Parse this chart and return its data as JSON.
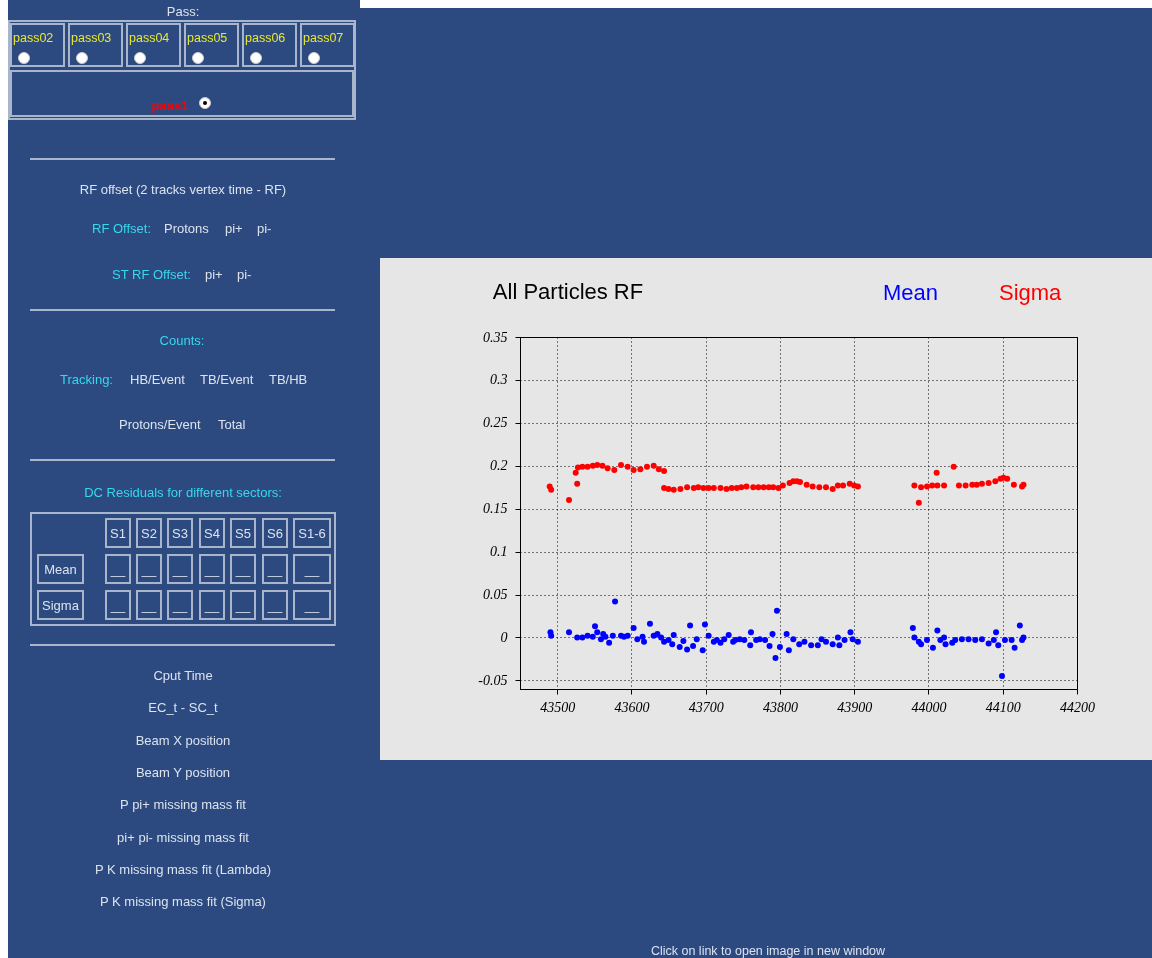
{
  "chart_data": {
    "type": "scatter",
    "title": "All Particles RF",
    "marker": "circle",
    "grid": true,
    "xlim": [
      43450,
      44200
    ],
    "xticks": [
      43500,
      43600,
      43700,
      43800,
      43900,
      44000,
      44100,
      44200
    ],
    "ylim": [
      -0.06,
      0.35
    ],
    "yticks": [
      -0.05,
      0,
      0.05,
      0.1,
      0.15,
      0.2,
      0.25,
      0.3,
      0.35
    ],
    "series": [
      {
        "name": "Mean",
        "color": "#0000ff",
        "x": [
          43491,
          43492,
          43516,
          43527,
          43534,
          43541,
          43548,
          43551,
          43554,
          43559,
          43562,
          43565,
          43570,
          43575,
          43578,
          43586,
          43590,
          43595,
          43603,
          43608,
          43615,
          43617,
          43625,
          43630,
          43635,
          43640,
          43644,
          43650,
          43655,
          43657,
          43665,
          43670,
          43675,
          43679,
          43683,
          43688,
          43696,
          43699,
          43704,
          43711,
          43715,
          43720,
          43725,
          43731,
          43737,
          43740,
          43746,
          43752,
          43760,
          43761,
          43768,
          43773,
          43780,
          43786,
          43790,
          43794,
          43796,
          43800,
          43809,
          43812,
          43818,
          43826,
          43833,
          43842,
          43851,
          43856,
          43862,
          43871,
          43878,
          43880,
          43887,
          43895,
          43898,
          43905,
          43979,
          43981,
          43987,
          43990,
          43998,
          44006,
          44012,
          44016,
          44021,
          44023,
          44032,
          44036,
          44045,
          44054,
          44063,
          44072,
          44081,
          44088,
          44091,
          44094,
          44099,
          44103,
          44112,
          44116,
          44123,
          44126,
          44128
        ],
        "values": [
          0.006,
          0.002,
          0.006,
          0.0,
          0.0,
          0.002,
          0.001,
          0.013,
          0.006,
          -0.002,
          0.004,
          0.001,
          -0.006,
          0.002,
          0.042,
          0.002,
          0.001,
          0.002,
          0.011,
          -0.002,
          0.001,
          -0.005,
          0.016,
          0.002,
          0.004,
          0.0,
          -0.005,
          -0.003,
          -0.008,
          0.003,
          -0.011,
          -0.004,
          -0.014,
          0.014,
          -0.01,
          -0.002,
          -0.015,
          0.015,
          0.002,
          -0.005,
          -0.003,
          -0.006,
          -0.002,
          0.003,
          -0.005,
          -0.003,
          -0.002,
          -0.003,
          -0.009,
          0.006,
          -0.003,
          -0.002,
          -0.003,
          -0.01,
          0.004,
          -0.024,
          0.031,
          -0.011,
          0.004,
          -0.015,
          -0.002,
          -0.008,
          -0.005,
          -0.009,
          -0.009,
          -0.002,
          -0.005,
          -0.008,
          0.0,
          -0.009,
          -0.003,
          0.006,
          -0.002,
          -0.005,
          0.011,
          0.0,
          -0.005,
          -0.008,
          -0.003,
          -0.012,
          0.008,
          -0.003,
          0.0,
          -0.008,
          -0.006,
          -0.003,
          -0.002,
          -0.002,
          -0.003,
          -0.002,
          -0.007,
          -0.003,
          0.006,
          -0.009,
          -0.045,
          -0.003,
          -0.003,
          -0.012,
          0.014,
          -0.003,
          0.0
        ]
      },
      {
        "name": "Sigma",
        "color": "#ff0000",
        "x": [
          43490,
          43492,
          43516,
          43525,
          43527,
          43528,
          43534,
          43541,
          43548,
          43554,
          43561,
          43568,
          43577,
          43586,
          43595,
          43603,
          43612,
          43621,
          43630,
          43637,
          43644,
          43644,
          43650,
          43657,
          43666,
          43675,
          43684,
          43690,
          43697,
          43704,
          43711,
          43720,
          43728,
          43735,
          43742,
          43748,
          43755,
          43764,
          43771,
          43778,
          43785,
          43791,
          43798,
          43804,
          43813,
          43818,
          43823,
          43827,
          43836,
          43844,
          43853,
          43862,
          43871,
          43878,
          43885,
          43894,
          43900,
          43905,
          43981,
          43987,
          43990,
          43998,
          44005,
          44011,
          44012,
          44021,
          44034,
          44041,
          44050,
          44059,
          44065,
          44072,
          44081,
          44090,
          44097,
          44101,
          44106,
          44115,
          44126,
          44128
        ],
        "values": [
          0.176,
          0.172,
          0.16,
          0.192,
          0.179,
          0.198,
          0.199,
          0.199,
          0.2,
          0.201,
          0.2,
          0.197,
          0.195,
          0.201,
          0.199,
          0.195,
          0.196,
          0.199,
          0.2,
          0.196,
          0.194,
          0.174,
          0.173,
          0.172,
          0.173,
          0.175,
          0.174,
          0.175,
          0.174,
          0.174,
          0.174,
          0.174,
          0.173,
          0.174,
          0.174,
          0.175,
          0.176,
          0.175,
          0.175,
          0.175,
          0.175,
          0.175,
          0.174,
          0.177,
          0.18,
          0.182,
          0.182,
          0.181,
          0.178,
          0.176,
          0.175,
          0.175,
          0.173,
          0.177,
          0.177,
          0.179,
          0.177,
          0.176,
          0.177,
          0.157,
          0.175,
          0.176,
          0.177,
          0.192,
          0.177,
          0.177,
          0.199,
          0.177,
          0.177,
          0.178,
          0.178,
          0.179,
          0.18,
          0.182,
          0.185,
          0.186,
          0.185,
          0.178,
          0.176,
          0.178
        ]
      }
    ],
    "annotations": [
      "Pass:",
      "pass02",
      "pass03",
      "pass04",
      "pass05",
      "pass06",
      "pass07",
      "pass1",
      "RF offset (2 tracks vertex time - RF)",
      "RF Offset:",
      "Protons",
      "pi+",
      "pi-",
      "ST RF Offset:",
      "pi+",
      "pi-",
      "Counts:",
      "Tracking:",
      "HB/Event",
      "TB/Event",
      "TB/HB",
      "Protons/Event",
      "Total",
      "DC Residuals for different sectors:",
      "S1",
      "S2",
      "S3",
      "S4",
      "S5",
      "S6",
      "S1-6",
      "Mean",
      "Sigma",
      "__",
      "__",
      "__",
      "__",
      "__",
      "__",
      "__",
      "__",
      "__",
      "__",
      "__",
      "__",
      "__",
      "__",
      "Cput Time",
      "EC_t - SC_t",
      "Beam X position",
      "Beam Y position",
      "P pi+ missing mass fit",
      "pi+ pi- missing mass fit",
      "P K missing mass fit (Lambda)",
      "P K missing mass fit (Sigma)",
      "Click on link to open image in new window"
    ]
  }
}
